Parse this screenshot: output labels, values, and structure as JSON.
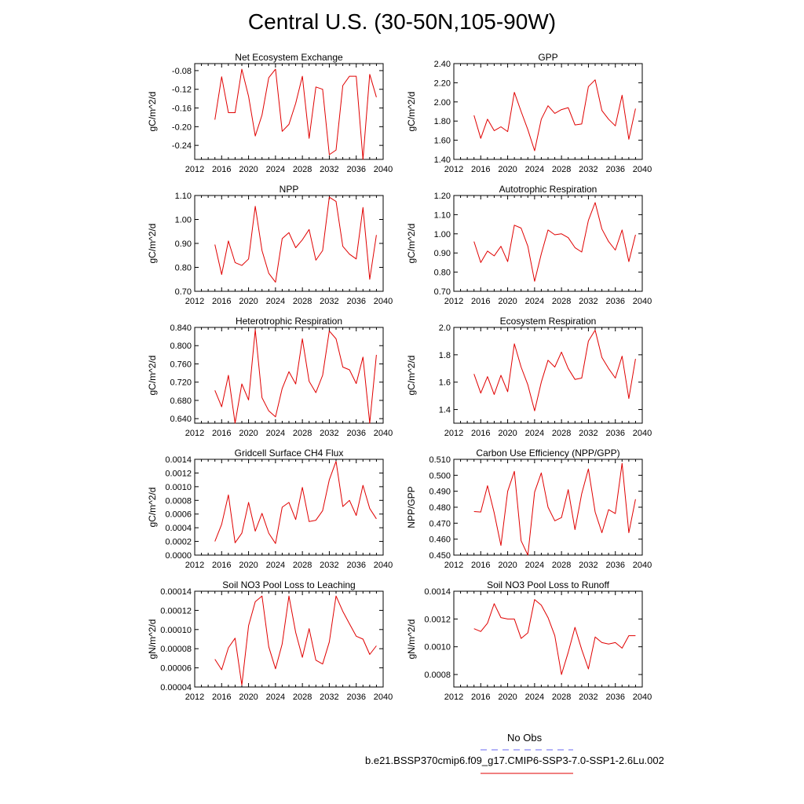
{
  "title": "Central U.S. (30-50N,105-90W)",
  "legend": {
    "obs_label": "No Obs",
    "obs_color": "#6a6af0",
    "model_label": "b.e21.BSSP370cmip6.f09_g17.CMIP6-SSP3-7.0-SSP1-2.6Lu.002",
    "model_color": "#e00000"
  },
  "chart_data": [
    {
      "type": "line",
      "title": "Net Ecosystem Exchange",
      "ylabel": "gC/m^2/d",
      "xlim": [
        2012,
        2040
      ],
      "ylim": [
        -0.27,
        -0.065
      ],
      "xticks": [
        2012,
        2016,
        2020,
        2024,
        2028,
        2032,
        2036,
        2040
      ],
      "yticks": [
        -0.24,
        -0.2,
        -0.16,
        -0.12,
        -0.08
      ],
      "ytick_labels": [
        "-0.24",
        "-0.20",
        "-0.16",
        "-0.12",
        "-0.08"
      ],
      "series": [
        {
          "color": "#e00000",
          "x": [
            2015,
            2016,
            2017,
            2018,
            2019,
            2020,
            2021,
            2022,
            2023,
            2024,
            2025,
            2026,
            2027,
            2028,
            2029,
            2030,
            2031,
            2032,
            2033,
            2034,
            2035,
            2036,
            2037,
            2038,
            2039
          ],
          "values": [
            -0.185,
            -0.093,
            -0.17,
            -0.17,
            -0.077,
            -0.135,
            -0.22,
            -0.175,
            -0.095,
            -0.077,
            -0.21,
            -0.195,
            -0.15,
            -0.092,
            -0.225,
            -0.115,
            -0.12,
            -0.26,
            -0.25,
            -0.112,
            -0.092,
            -0.092,
            -0.27,
            -0.088,
            -0.137
          ]
        }
      ]
    },
    {
      "type": "line",
      "title": "GPP",
      "ylabel": "gC/m^2/d",
      "xlim": [
        2012,
        2040
      ],
      "ylim": [
        1.4,
        2.4
      ],
      "xticks": [
        2012,
        2016,
        2020,
        2024,
        2028,
        2032,
        2036,
        2040
      ],
      "yticks": [
        1.4,
        1.6,
        1.8,
        2.0,
        2.2,
        2.4
      ],
      "ytick_labels": [
        "1.40",
        "1.60",
        "1.80",
        "2.00",
        "2.20",
        "2.40"
      ],
      "series": [
        {
          "color": "#e00000",
          "x": [
            2015,
            2016,
            2017,
            2018,
            2019,
            2020,
            2021,
            2022,
            2023,
            2024,
            2025,
            2026,
            2027,
            2028,
            2029,
            2030,
            2031,
            2032,
            2033,
            2034,
            2035,
            2036,
            2037,
            2038,
            2039
          ],
          "values": [
            1.86,
            1.62,
            1.82,
            1.7,
            1.74,
            1.69,
            2.1,
            1.9,
            1.71,
            1.49,
            1.82,
            1.96,
            1.88,
            1.92,
            1.94,
            1.76,
            1.77,
            2.16,
            2.23,
            1.91,
            1.82,
            1.75,
            2.07,
            1.61,
            1.93
          ]
        }
      ]
    },
    {
      "type": "line",
      "title": "NPP",
      "ylabel": "gC/m^2/d",
      "xlim": [
        2012,
        2040
      ],
      "ylim": [
        0.7,
        1.1
      ],
      "xticks": [
        2012,
        2016,
        2020,
        2024,
        2028,
        2032,
        2036,
        2040
      ],
      "yticks": [
        0.7,
        0.8,
        0.9,
        1.0,
        1.1
      ],
      "ytick_labels": [
        "0.70",
        "0.80",
        "0.90",
        "1.00",
        "1.10"
      ],
      "series": [
        {
          "color": "#e00000",
          "x": [
            2015,
            2016,
            2017,
            2018,
            2019,
            2020,
            2021,
            2022,
            2023,
            2024,
            2025,
            2026,
            2027,
            2028,
            2029,
            2030,
            2031,
            2032,
            2033,
            2034,
            2035,
            2036,
            2037,
            2038,
            2039
          ],
          "values": [
            0.895,
            0.77,
            0.91,
            0.82,
            0.808,
            0.835,
            1.055,
            0.87,
            0.775,
            0.738,
            0.92,
            0.945,
            0.882,
            0.915,
            0.958,
            0.83,
            0.87,
            1.093,
            1.075,
            0.888,
            0.855,
            0.835,
            1.05,
            0.75,
            0.935
          ]
        }
      ]
    },
    {
      "type": "line",
      "title": "Autotrophic Respiration",
      "ylabel": "gC/m^2/d",
      "xlim": [
        2012,
        2040
      ],
      "ylim": [
        0.7,
        1.2
      ],
      "xticks": [
        2012,
        2016,
        2020,
        2024,
        2028,
        2032,
        2036,
        2040
      ],
      "yticks": [
        0.7,
        0.8,
        0.9,
        1.0,
        1.1,
        1.2
      ],
      "ytick_labels": [
        "0.70",
        "0.80",
        "0.90",
        "1.00",
        "1.10",
        "1.20"
      ],
      "series": [
        {
          "color": "#e00000",
          "x": [
            2015,
            2016,
            2017,
            2018,
            2019,
            2020,
            2021,
            2022,
            2023,
            2024,
            2025,
            2026,
            2027,
            2028,
            2029,
            2030,
            2031,
            2032,
            2033,
            2034,
            2035,
            2036,
            2037,
            2038,
            2039
          ],
          "values": [
            0.96,
            0.85,
            0.91,
            0.885,
            0.935,
            0.855,
            1.045,
            1.03,
            0.935,
            0.752,
            0.895,
            1.02,
            0.995,
            1.0,
            0.98,
            0.928,
            0.905,
            1.07,
            1.163,
            1.025,
            0.96,
            0.915,
            1.02,
            0.855,
            0.995
          ]
        }
      ]
    },
    {
      "type": "line",
      "title": "Heterotrophic Respiration",
      "ylabel": "gC/m^2/d",
      "xlim": [
        2012,
        2040
      ],
      "ylim": [
        0.63,
        0.84
      ],
      "xticks": [
        2012,
        2016,
        2020,
        2024,
        2028,
        2032,
        2036,
        2040
      ],
      "yticks": [
        0.64,
        0.68,
        0.72,
        0.76,
        0.8,
        0.84
      ],
      "ytick_labels": [
        "0.640",
        "0.680",
        "0.720",
        "0.760",
        "0.800",
        "0.840"
      ],
      "series": [
        {
          "color": "#e00000",
          "x": [
            2015,
            2016,
            2017,
            2018,
            2019,
            2020,
            2021,
            2022,
            2023,
            2024,
            2025,
            2026,
            2027,
            2028,
            2029,
            2030,
            2031,
            2032,
            2033,
            2034,
            2035,
            2036,
            2037,
            2038,
            2039
          ],
          "values": [
            0.702,
            0.666,
            0.735,
            0.63,
            0.716,
            0.681,
            0.835,
            0.686,
            0.657,
            0.644,
            0.706,
            0.743,
            0.716,
            0.815,
            0.722,
            0.697,
            0.735,
            0.832,
            0.815,
            0.753,
            0.747,
            0.717,
            0.775,
            0.63,
            0.78
          ]
        }
      ]
    },
    {
      "type": "line",
      "title": "Ecosystem Respiration",
      "ylabel": "gC/m^2/d",
      "xlim": [
        2012,
        2040
      ],
      "ylim": [
        1.3,
        2.0
      ],
      "xticks": [
        2012,
        2016,
        2020,
        2024,
        2028,
        2032,
        2036,
        2040
      ],
      "yticks": [
        1.4,
        1.6,
        1.8,
        2.0
      ],
      "ytick_labels": [
        "1.4",
        "1.6",
        "1.8",
        "2.0"
      ],
      "series": [
        {
          "color": "#e00000",
          "x": [
            2015,
            2016,
            2017,
            2018,
            2019,
            2020,
            2021,
            2022,
            2023,
            2024,
            2025,
            2026,
            2027,
            2028,
            2029,
            2030,
            2031,
            2032,
            2033,
            2034,
            2035,
            2036,
            2037,
            2038,
            2039
          ],
          "values": [
            1.66,
            1.52,
            1.64,
            1.51,
            1.65,
            1.53,
            1.88,
            1.71,
            1.58,
            1.39,
            1.6,
            1.76,
            1.71,
            1.82,
            1.7,
            1.62,
            1.63,
            1.9,
            1.98,
            1.78,
            1.7,
            1.63,
            1.79,
            1.48,
            1.77
          ]
        }
      ]
    },
    {
      "type": "line",
      "title": "Gridcell Surface CH4 Flux",
      "ylabel": "gC/m^2/d",
      "xlim": [
        2012,
        2040
      ],
      "ylim": [
        0.0,
        0.0014
      ],
      "xticks": [
        2012,
        2016,
        2020,
        2024,
        2028,
        2032,
        2036,
        2040
      ],
      "yticks": [
        0.0,
        0.0002,
        0.0004,
        0.0006,
        0.0008,
        0.001,
        0.0012,
        0.0014
      ],
      "ytick_labels": [
        "0.0000",
        "0.0002",
        "0.0004",
        "0.0006",
        "0.0008",
        "0.0010",
        "0.0012",
        "0.0014"
      ],
      "series": [
        {
          "color": "#e00000",
          "x": [
            2015,
            2016,
            2017,
            2018,
            2019,
            2020,
            2021,
            2022,
            2023,
            2024,
            2025,
            2026,
            2027,
            2028,
            2029,
            2030,
            2031,
            2032,
            2033,
            2034,
            2035,
            2036,
            2037,
            2038,
            2039
          ],
          "values": [
            0.0002,
            0.00045,
            0.00088,
            0.00018,
            0.00032,
            0.00077,
            0.00035,
            0.00061,
            0.00032,
            0.00017,
            0.0007,
            0.00077,
            0.00052,
            0.00099,
            0.00049,
            0.00051,
            0.00065,
            0.0011,
            0.00137,
            0.00071,
            0.0008,
            0.00058,
            0.00102,
            0.00068,
            0.00053
          ]
        }
      ]
    },
    {
      "type": "line",
      "title": "Carbon Use Efficiency (NPP/GPP)",
      "ylabel": "NPP/GPP",
      "xlim": [
        2012,
        2040
      ],
      "ylim": [
        0.45,
        0.51
      ],
      "xticks": [
        2012,
        2016,
        2020,
        2024,
        2028,
        2032,
        2036,
        2040
      ],
      "yticks": [
        0.45,
        0.46,
        0.47,
        0.48,
        0.49,
        0.5,
        0.51
      ],
      "ytick_labels": [
        "0.450",
        "0.460",
        "0.470",
        "0.480",
        "0.490",
        "0.500",
        "0.510"
      ],
      "series": [
        {
          "color": "#e00000",
          "x": [
            2015,
            2016,
            2017,
            2018,
            2019,
            2020,
            2021,
            2022,
            2023,
            2024,
            2025,
            2026,
            2027,
            2028,
            2029,
            2030,
            2031,
            2032,
            2033,
            2034,
            2035,
            2036,
            2037,
            2038,
            2039
          ],
          "values": [
            0.4773,
            0.477,
            0.4935,
            0.4765,
            0.456,
            0.49,
            0.5025,
            0.459,
            0.45,
            0.4895,
            0.5015,
            0.48,
            0.4715,
            0.4735,
            0.491,
            0.466,
            0.4885,
            0.504,
            0.477,
            0.464,
            0.4785,
            0.476,
            0.5075,
            0.464,
            0.485
          ]
        }
      ]
    },
    {
      "type": "line",
      "title": "Soil NO3 Pool Loss to Leaching",
      "ylabel": "gN/m^2/d",
      "xlim": [
        2012,
        2040
      ],
      "ylim": [
        4e-05,
        0.00014
      ],
      "xticks": [
        2012,
        2016,
        2020,
        2024,
        2028,
        2032,
        2036,
        2040
      ],
      "yticks": [
        4e-05,
        6e-05,
        8e-05,
        0.0001,
        0.00012,
        0.00014
      ],
      "ytick_labels": [
        "0.00004",
        "0.00006",
        "0.00008",
        "0.00010",
        "0.00012",
        "0.00014"
      ],
      "series": [
        {
          "color": "#e00000",
          "x": [
            2015,
            2016,
            2017,
            2018,
            2019,
            2020,
            2021,
            2022,
            2023,
            2024,
            2025,
            2026,
            2027,
            2028,
            2029,
            2030,
            2031,
            2032,
            2033,
            2034,
            2035,
            2036,
            2037,
            2038,
            2039
          ],
          "values": [
            6.9e-05,
            5.8e-05,
            8.1e-05,
            9.1e-05,
            4.2e-05,
            0.000104,
            0.000129,
            0.000135,
            8.2e-05,
            5.9e-05,
            8.5e-05,
            0.000135,
            9.7e-05,
            7.1e-05,
            0.000101,
            6.8e-05,
            6.4e-05,
            8.7e-05,
            0.000135,
            0.000119,
            0.000106,
            9.3e-05,
            9e-05,
            7.4e-05,
            8.3e-05
          ]
        }
      ]
    },
    {
      "type": "line",
      "title": "Soil NO3 Pool Loss to Runoff",
      "ylabel": "gN/m^2/d",
      "xlim": [
        2012,
        2040
      ],
      "ylim": [
        0.00071,
        0.0014
      ],
      "xticks": [
        2012,
        2016,
        2020,
        2024,
        2028,
        2032,
        2036,
        2040
      ],
      "yticks": [
        0.0008,
        0.001,
        0.0012,
        0.0014
      ],
      "ytick_labels": [
        "0.0008",
        "0.0010",
        "0.0012",
        "0.0014"
      ],
      "series": [
        {
          "color": "#e00000",
          "x": [
            2015,
            2016,
            2017,
            2018,
            2019,
            2020,
            2021,
            2022,
            2023,
            2024,
            2025,
            2026,
            2027,
            2028,
            2029,
            2030,
            2031,
            2032,
            2033,
            2034,
            2035,
            2036,
            2037,
            2038,
            2039
          ],
          "values": [
            0.00113,
            0.00111,
            0.00117,
            0.00131,
            0.00121,
            0.0012,
            0.0012,
            0.00106,
            0.0011,
            0.00134,
            0.0013,
            0.00121,
            0.00108,
            0.0008,
            0.00096,
            0.00114,
            0.00098,
            0.00084,
            0.00107,
            0.00103,
            0.00102,
            0.00103,
            0.00099,
            0.00108,
            0.00108
          ]
        }
      ]
    }
  ]
}
